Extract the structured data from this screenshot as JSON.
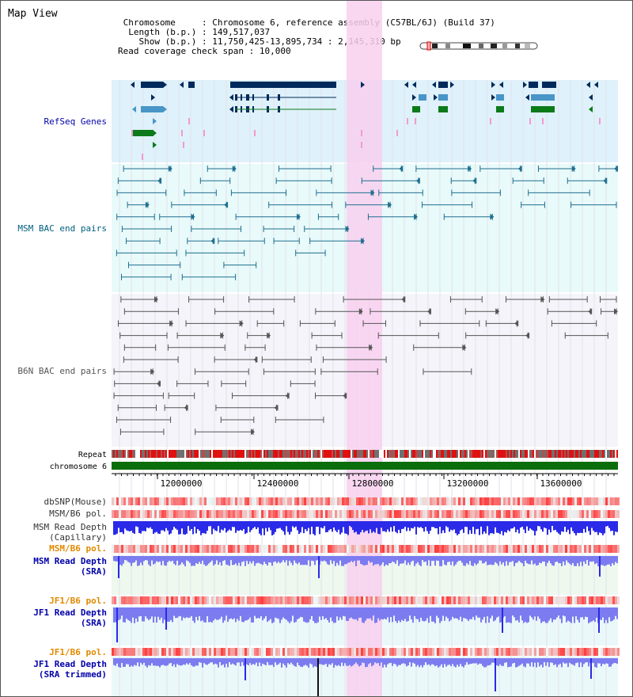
{
  "title": "Map View",
  "header": {
    "chromosome_label": "Chromosome",
    "chromosome_value": "Chromosome 6, reference assembly (C57BL/6J) (Build 37)",
    "length_label": "Length (b.p.)",
    "length_value": "149,517,037",
    "show_label": "Show (b.p.)",
    "show_value": "11,750,425-13,895,734 : 2,145,310 bp",
    "coverage_label": "Read coverage check span",
    "coverage_value": "10,000"
  },
  "tracks": {
    "refseq": "RefSeq Genes",
    "msm_bac": "MSM BAC end pairs",
    "b6n_bac": "B6N BAC end pairs",
    "repeat": "Repeat",
    "chromosome": "chromosome 6",
    "dbsnp": "dbSNP(Mouse)",
    "msm_b6_pol_1": "MSM/B6 pol.",
    "msm_depth_cap_1": "MSM Read Depth",
    "msm_depth_cap_2": "(Capillary)",
    "msm_b6_pol_2": "MSM/B6 pol.",
    "msm_depth_sra_1": "MSM Read Depth",
    "msm_depth_sra_2": "(SRA)",
    "jf1_b6_pol_1": "JF1/B6 pol.",
    "jf1_depth_sra_1": "JF1 Read Depth",
    "jf1_depth_sra_2": "(SRA)",
    "jf1_b6_pol_2": "JF1/B6 pol.",
    "jf1_depth_trim_1": "JF1 Read Depth",
    "jf1_depth_trim_2": "(SRA trimmed)"
  },
  "axis": {
    "ticks": [
      "12000000",
      "12400000",
      "12800000",
      "13200000",
      "13600000"
    ]
  },
  "colors": {
    "refseq_bg": "#dff1fa",
    "msm_bg": "#e8fafa",
    "b6n_bg": "#f4f4fa",
    "highlight": "#f8d0ef",
    "gene_navy": "#002a5c",
    "gene_blue": "#4895c8",
    "gene_green": "#0a7a1a",
    "gene_pink": "#f19ad0",
    "msm_line": "#1f6f8f",
    "b6n_line": "#555555",
    "chromosome_bar": "#0a6e0a",
    "depth_blue": "#2a2ae8",
    "depth_light": "#7c7cf0",
    "pol_red": "#e83030",
    "label_navy": "#0000aa",
    "label_teal": "#006080",
    "label_orange": "#e08a00"
  }
}
